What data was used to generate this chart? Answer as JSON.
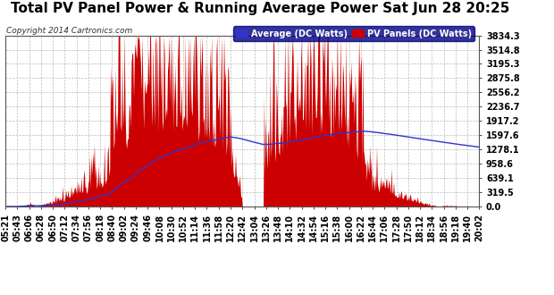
{
  "title": "Total PV Panel Power & Running Average Power Sat Jun 28 20:25",
  "copyright": "Copyright 2014 Cartronics.com",
  "legend_avg": "Average (DC Watts)",
  "legend_pv": "PV Panels (DC Watts)",
  "y_ticks": [
    0.0,
    319.5,
    639.1,
    958.6,
    1278.1,
    1597.6,
    1917.2,
    2236.7,
    2556.2,
    2875.8,
    3195.3,
    3514.8,
    3834.3
  ],
  "y_max": 3834.3,
  "x_labels": [
    "05:21",
    "05:43",
    "06:06",
    "06:28",
    "06:50",
    "07:12",
    "07:34",
    "07:56",
    "08:18",
    "08:40",
    "09:02",
    "09:24",
    "09:46",
    "10:08",
    "10:30",
    "10:52",
    "11:14",
    "11:36",
    "11:58",
    "12:20",
    "12:42",
    "13:04",
    "13:26",
    "13:48",
    "14:10",
    "14:32",
    "14:54",
    "15:16",
    "15:38",
    "16:00",
    "16:22",
    "16:44",
    "17:06",
    "17:28",
    "17:50",
    "18:12",
    "18:34",
    "18:56",
    "19:18",
    "19:40",
    "20:02"
  ],
  "bg_color": "#ffffff",
  "plot_bg_color": "#ffffff",
  "grid_color": "#aaaaaa",
  "pv_color": "#cc0000",
  "avg_color": "#3333cc",
  "title_fontsize": 11,
  "tick_fontsize": 7,
  "legend_fontsize": 7.5
}
